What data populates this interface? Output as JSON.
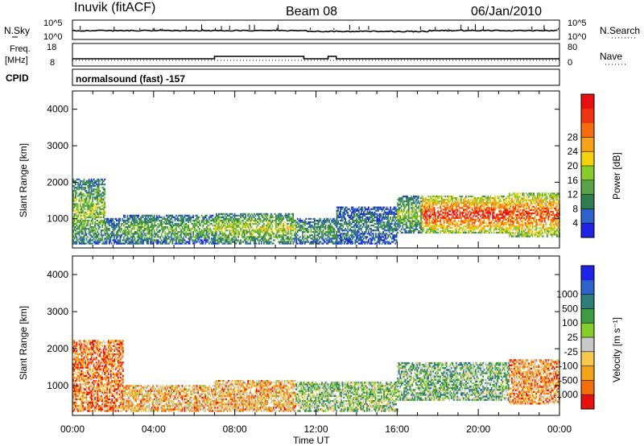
{
  "header": {
    "station": "Inuvik (fitACF)",
    "beam": "Beam 08",
    "date": "06/Jan/2010"
  },
  "summary_panels": {
    "nsky": {
      "left_label": "N.Sky",
      "left_top": "10^5",
      "left_bottom": "10^0",
      "right_label": "N.Search",
      "right_top": "10^5",
      "right_bottom": "10^0"
    },
    "freq": {
      "left_label_1": "Freq.",
      "left_label_2": "[MHz]",
      "left_top": "18",
      "left_bottom": "8",
      "right_label": "Nave",
      "right_top": "80",
      "right_bottom": "0"
    },
    "cpid": {
      "label": "CPID",
      "text": "normalsound (fast) -157"
    }
  },
  "chart_data": [
    {
      "type": "heatmap",
      "name": "power",
      "ylabel": "Slant Range [km]",
      "yticks": [
        "1000",
        "2000",
        "3000",
        "4000"
      ],
      "ylim": [
        200,
        4500
      ],
      "x_unit": "hours UT",
      "xlim": [
        0,
        24
      ],
      "colorbar": {
        "label": "Power [dB]",
        "tick_labels": [
          "4",
          "8",
          "12",
          "16",
          "20",
          "24",
          "28"
        ],
        "colors": [
          "#1f23e6",
          "#2d63c8",
          "#2f7d4e",
          "#5aa24a",
          "#86cc2a",
          "#f4d20c",
          "#f7a01a",
          "#f36d0d",
          "#ee3410",
          "#e80f0f"
        ]
      },
      "echo_regions": [
        {
          "x_start": 0.0,
          "x_end": 1.6,
          "range_min": 300,
          "range_max": 2100,
          "level": 0.45
        },
        {
          "x_start": 1.6,
          "x_end": 2.5,
          "range_min": 300,
          "range_max": 1000,
          "level": 0.3
        },
        {
          "x_start": 2.5,
          "x_end": 7.0,
          "range_min": 300,
          "range_max": 1100,
          "level": 0.4
        },
        {
          "x_start": 7.0,
          "x_end": 11.0,
          "range_min": 300,
          "range_max": 1150,
          "level": 0.5
        },
        {
          "x_start": 11.0,
          "x_end": 13.0,
          "range_min": 300,
          "range_max": 1000,
          "level": 0.35
        },
        {
          "x_start": 13.0,
          "x_end": 16.0,
          "range_min": 300,
          "range_max": 1300,
          "level": 0.25
        },
        {
          "x_start": 16.0,
          "x_end": 17.2,
          "range_min": 600,
          "range_max": 1600,
          "level": 0.45
        },
        {
          "x_start": 17.2,
          "x_end": 21.5,
          "range_min": 600,
          "range_max": 1600,
          "level": 0.92
        },
        {
          "x_start": 21.5,
          "x_end": 24.0,
          "range_min": 500,
          "range_max": 1700,
          "level": 0.85
        }
      ]
    },
    {
      "type": "heatmap",
      "name": "velocity",
      "ylabel": "Slant Range [km]",
      "yticks": [
        "1000",
        "2000",
        "3000",
        "4000"
      ],
      "ylim": [
        200,
        4500
      ],
      "x_unit": "hours UT",
      "xlim": [
        0,
        24
      ],
      "xticks": [
        "00:00",
        "04:00",
        "08:00",
        "12:00",
        "16:00",
        "20:00",
        "00:00"
      ],
      "xlabel": "Time UT",
      "colorbar": {
        "label": "Velocity [m s⁻¹]",
        "tick_labels": [
          "-1000",
          "-500",
          "-100",
          "-25",
          "25",
          "100",
          "500",
          "1000"
        ],
        "colors": [
          "#e80f0f",
          "#f36d0d",
          "#f5a21b",
          "#f7c84c",
          "#c8c8c8",
          "#86cc2a",
          "#3f9a44",
          "#2f7d7a",
          "#2d63c8",
          "#1f23e6"
        ]
      },
      "echo_regions": [
        {
          "x_start": 0.0,
          "x_end": 2.5,
          "range_min": 300,
          "range_max": 2200,
          "level": 0.2
        },
        {
          "x_start": 2.5,
          "x_end": 7.0,
          "range_min": 300,
          "range_max": 1000,
          "level": 0.3
        },
        {
          "x_start": 7.0,
          "x_end": 11.0,
          "range_min": 300,
          "range_max": 1150,
          "level": 0.3
        },
        {
          "x_start": 11.0,
          "x_end": 16.0,
          "range_min": 300,
          "range_max": 1100,
          "level": 0.55
        },
        {
          "x_start": 16.0,
          "x_end": 21.5,
          "range_min": 600,
          "range_max": 1600,
          "level": 0.6
        },
        {
          "x_start": 21.5,
          "x_end": 24.0,
          "range_min": 500,
          "range_max": 1700,
          "level": 0.25
        }
      ]
    }
  ]
}
